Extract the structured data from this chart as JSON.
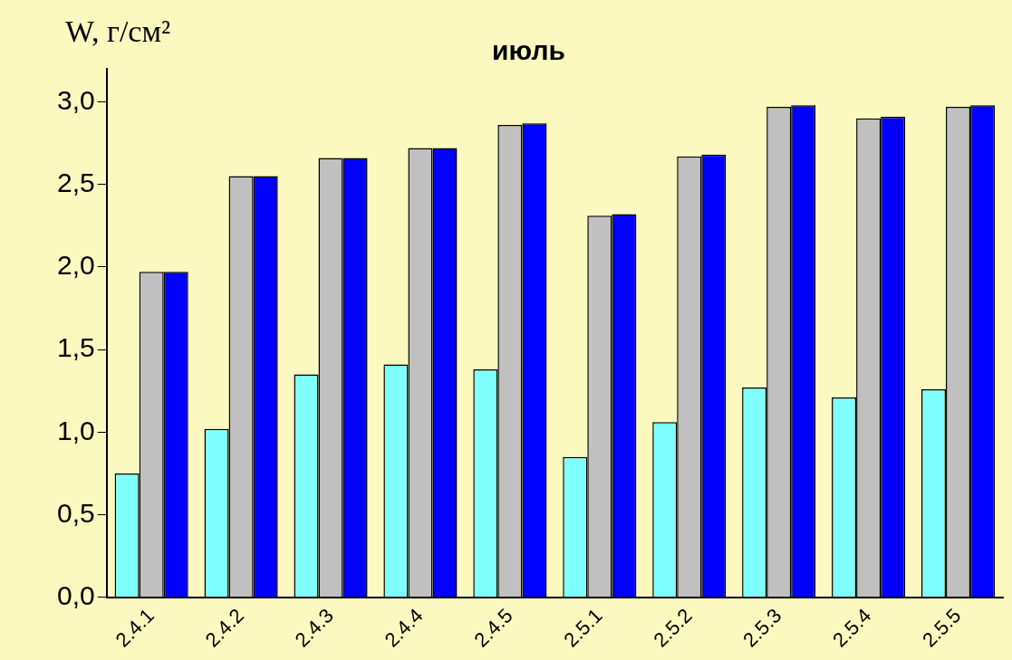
{
  "chart_data": {
    "type": "bar",
    "title": "июль",
    "ylabel": "W, г/см²",
    "categories": [
      "2.4.1",
      "2.4.2",
      "2.4.3",
      "2.4.4",
      "2.4.5",
      "2.5.1",
      "2.5.2",
      "2.5.3",
      "2.5.4",
      "2.5.5"
    ],
    "series": [
      {
        "color": "#80ffff",
        "values": [
          0.75,
          1.02,
          1.35,
          1.41,
          1.38,
          0.85,
          1.06,
          1.27,
          1.21,
          1.26
        ]
      },
      {
        "color": "#c0c0c0",
        "values": [
          1.97,
          2.55,
          2.66,
          2.72,
          2.86,
          2.31,
          2.67,
          2.97,
          2.9,
          2.97
        ]
      },
      {
        "color": "#0000ff",
        "values": [
          1.97,
          2.55,
          2.66,
          2.72,
          2.87,
          2.32,
          2.68,
          2.98,
          2.91,
          2.98
        ]
      }
    ],
    "ylim": [
      0,
      3.2
    ],
    "yticks": [
      {
        "value": 0,
        "label": "0,0"
      },
      {
        "value": 0.5,
        "label": "0,5"
      },
      {
        "value": 1,
        "label": "1,0"
      },
      {
        "value": 1.5,
        "label": "1,5"
      },
      {
        "value": 2,
        "label": "2,0"
      },
      {
        "value": 2.5,
        "label": "2,5"
      },
      {
        "value": 3,
        "label": "3,0"
      }
    ],
    "grid": false,
    "legend": false
  }
}
